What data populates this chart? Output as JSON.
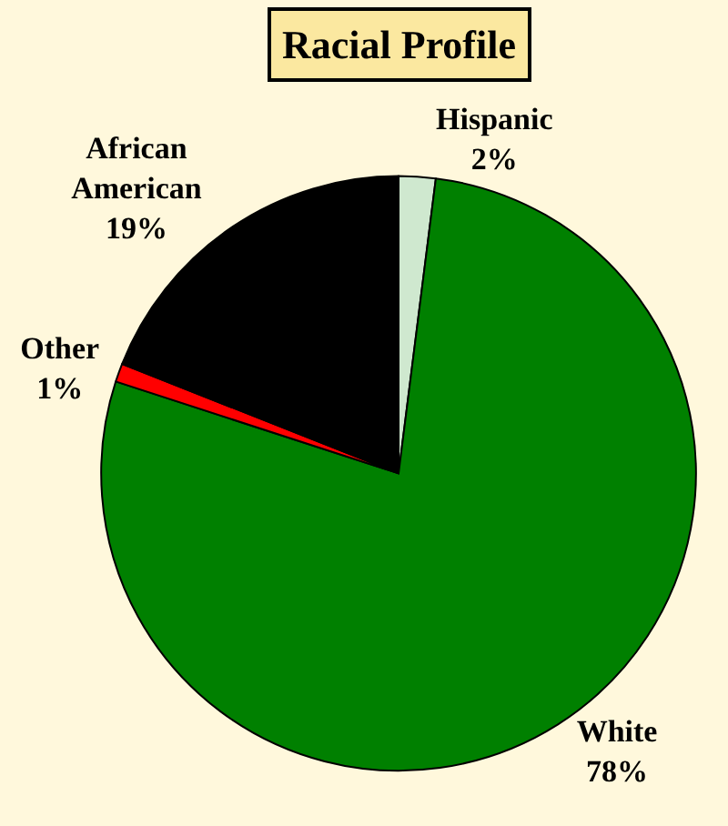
{
  "chart_data": {
    "type": "pie",
    "title": "Racial Profile",
    "categories": [
      "Hispanic",
      "White",
      "Other",
      "African American"
    ],
    "values": [
      2,
      78,
      1,
      19
    ],
    "value_labels": [
      "2%",
      "78%",
      "1%",
      "19%"
    ],
    "colors": [
      "#cfe8cf",
      "#008000",
      "#ff0000",
      "#000000"
    ],
    "legend": false
  }
}
